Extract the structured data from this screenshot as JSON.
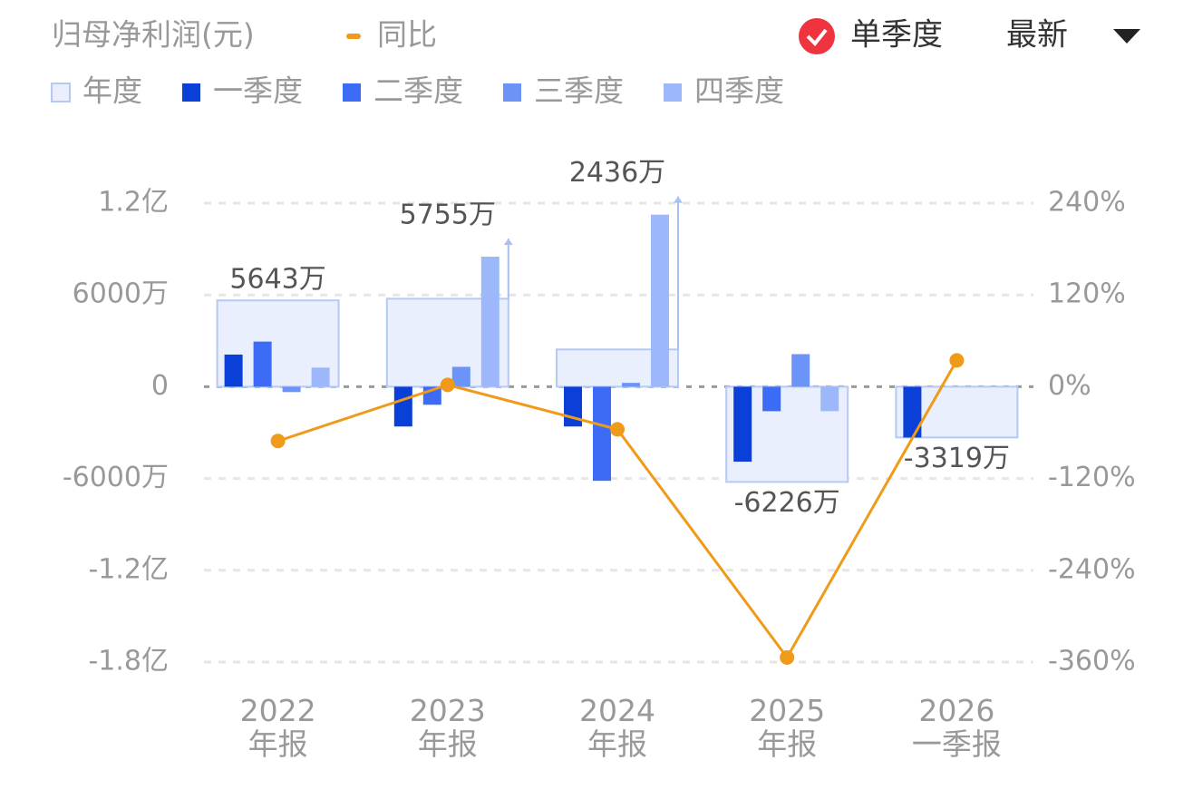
{
  "chart_data": {
    "type": "bar",
    "title": "归母净利润(元)",
    "categories": [
      "2022\n年报",
      "2023\n年报",
      "2024\n年报",
      "2025\n年报",
      "2026\n一季报"
    ],
    "ylim": [
      -18000,
      12000
    ],
    "yticks": [
      {
        "value": 12000,
        "label": "1.2亿"
      },
      {
        "value": 6000,
        "label": "6000万"
      },
      0,
      {
        "value": -6000,
        "label": "-6000万"
      },
      {
        "value": -12000,
        "label": "-1.2亿"
      },
      {
        "value": -18000,
        "label": "-1.8亿"
      }
    ],
    "y2lim": [
      -360,
      240
    ],
    "y2ticks": [
      {
        "value": 240,
        "label": "240%"
      },
      {
        "value": 120,
        "label": "120%"
      },
      {
        "value": 0,
        "label": "0%"
      },
      {
        "value": -120,
        "label": "-120%"
      },
      {
        "value": -240,
        "label": "-240%"
      },
      {
        "value": -360,
        "label": "-360%"
      }
    ],
    "grid": true,
    "series": [
      {
        "name": "年度",
        "color": "#e9effd",
        "values": [
          5643,
          5755,
          2436,
          -6226,
          -3319
        ],
        "value_labels": [
          "5643万",
          "5755万",
          "2436万",
          "-6226万",
          "-3319万"
        ]
      },
      {
        "name": "一季度",
        "color": "#0a3fd8",
        "values": [
          2100,
          -2600,
          -2600,
          -4900,
          -3319
        ]
      },
      {
        "name": "二季度",
        "color": "#3c6cf5",
        "values": [
          2950,
          -1180,
          -6150,
          -1600,
          null
        ]
      },
      {
        "name": "三季度",
        "color": "#6b93f8",
        "values": [
          -350,
          1300,
          250,
          2130,
          null
        ]
      },
      {
        "name": "四季度",
        "color": "#9db8fa",
        "values": [
          1250,
          8500,
          11250,
          -1600,
          null
        ]
      },
      {
        "name": "同比",
        "color": "#f09a1a",
        "type": "line",
        "axis": "y2",
        "values": [
          -71,
          2.4,
          -55.7,
          -354,
          34.4
        ]
      }
    ]
  },
  "controls": {
    "mode": "单季度",
    "period": "最新"
  }
}
